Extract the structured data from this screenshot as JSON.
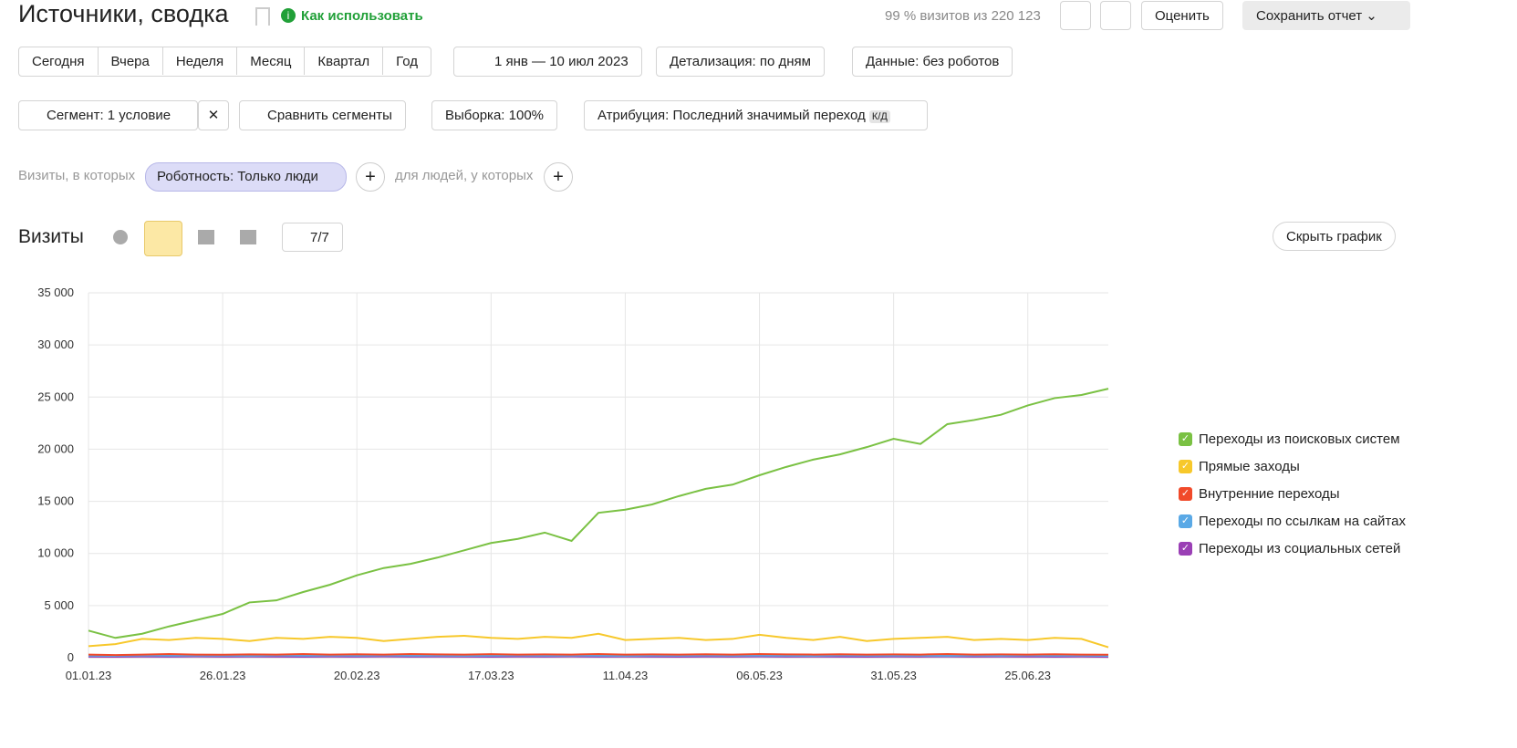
{
  "header": {
    "title": "Источники, сводка",
    "help": "Как использовать",
    "sampling": "99 % визитов из 220 123",
    "rate": "Оценить",
    "save": "Сохранить отчет"
  },
  "periods": [
    "Сегодня",
    "Вчера",
    "Неделя",
    "Месяц",
    "Квартал",
    "Год"
  ],
  "date_range": "1 янв — 10 июл 2023",
  "detail": "Детализация: по дням",
  "robots": "Данные: без роботов",
  "segment": "Сегмент: 1 условие",
  "compare": "Сравнить сегменты",
  "sample": "Выборка: 100%",
  "attribution": "Атрибуция: Последний значимый переход",
  "attribution_badge": "К/Д",
  "filter": {
    "prefix": "Визиты, в которых",
    "chip": "Роботность: Только люди",
    "people": "для людей, у которых"
  },
  "chart_header": {
    "title": "Визиты",
    "notes": "7/7",
    "hide": "Скрыть график"
  },
  "chart_data": {
    "type": "line",
    "x": [
      "01.01.23",
      "06.01.23",
      "11.01.23",
      "16.01.23",
      "21.01.23",
      "26.01.23",
      "31.01.23",
      "05.02.23",
      "10.02.23",
      "15.02.23",
      "20.02.23",
      "25.02.23",
      "02.03.23",
      "07.03.23",
      "12.03.23",
      "17.03.23",
      "22.03.23",
      "27.03.23",
      "01.04.23",
      "06.04.23",
      "11.04.23",
      "16.04.23",
      "21.04.23",
      "26.04.23",
      "01.05.23",
      "06.05.23",
      "11.05.23",
      "16.05.23",
      "21.05.23",
      "26.05.23",
      "31.05.23",
      "05.06.23",
      "10.06.23",
      "15.06.23",
      "20.06.23",
      "25.06.23",
      "30.06.23",
      "05.07.23",
      "10.07.23"
    ],
    "xlim": [
      "01.01.23",
      "10.07.23"
    ],
    "xticks": [
      "01.01.23",
      "26.01.23",
      "20.02.23",
      "17.03.23",
      "11.04.23",
      "06.05.23",
      "31.05.23",
      "25.06.23"
    ],
    "ylim": [
      0,
      35000
    ],
    "yticks": [
      0,
      {
        "value": 5000,
        "label": "5 000"
      },
      {
        "value": 10000,
        "label": "10 000"
      },
      {
        "value": 15000,
        "label": "15 000"
      },
      {
        "value": 20000,
        "label": "20 000"
      },
      {
        "value": 25000,
        "label": "25 000"
      },
      {
        "value": 30000,
        "label": "30 000"
      },
      {
        "value": 35000,
        "label": "35 000"
      }
    ],
    "grid": true,
    "legend": "right",
    "series": [
      {
        "name": "Переходы из поисковых систем",
        "color": "#7ac143",
        "values": [
          2600,
          1900,
          2300,
          3000,
          3600,
          4200,
          5300,
          5500,
          6300,
          7000,
          7900,
          8600,
          9000,
          9600,
          10300,
          11000,
          11400,
          12000,
          11200,
          13900,
          14200,
          14700,
          15500,
          16200,
          16600,
          17500,
          18300,
          19000,
          19500,
          20200,
          21000,
          20500,
          22400,
          22800,
          23300,
          24200,
          24900,
          25200,
          25800
        ]
      },
      {
        "name": "Прямые заходы",
        "color": "#f7c82b",
        "values": [
          1100,
          1300,
          1800,
          1700,
          1900,
          1800,
          1600,
          1900,
          1800,
          2000,
          1900,
          1600,
          1800,
          2000,
          2100,
          1900,
          1800,
          2000,
          1900,
          2300,
          1700,
          1800,
          1900,
          1700,
          1800,
          2200,
          1900,
          1700,
          2000,
          1600,
          1800,
          1900,
          2000,
          1700,
          1800,
          1700,
          1900,
          1800,
          1000
        ]
      },
      {
        "name": "Внутренние переходы",
        "color": "#f14a2a",
        "values": [
          300,
          250,
          300,
          350,
          300,
          280,
          320,
          300,
          350,
          300,
          330,
          300,
          350,
          320,
          300,
          340,
          300,
          320,
          300,
          350,
          300,
          320,
          300,
          330,
          300,
          350,
          320,
          300,
          330,
          300,
          320,
          300,
          350,
          300,
          320,
          300,
          330,
          300,
          280
        ]
      },
      {
        "name": "Переходы по ссылкам на сайтах",
        "color": "#5aa9e6",
        "values": [
          200,
          180,
          220,
          200,
          210,
          200,
          190,
          220,
          200,
          210,
          200,
          220,
          200,
          210,
          190,
          200,
          220,
          200,
          210,
          200,
          190,
          210,
          200,
          220,
          200,
          210,
          200,
          190,
          220,
          200,
          210,
          200,
          190,
          210,
          200,
          220,
          200,
          210,
          180
        ]
      },
      {
        "name": "Переходы из социальных сетей",
        "color": "#9a3fb5",
        "values": [
          100,
          90,
          110,
          100,
          120,
          100,
          110,
          100,
          90,
          110,
          100,
          120,
          100,
          110,
          100,
          90,
          110,
          100,
          120,
          100,
          110,
          100,
          90,
          110,
          100,
          120,
          100,
          110,
          100,
          90,
          110,
          100,
          120,
          100,
          110,
          100,
          90,
          110,
          80
        ]
      }
    ]
  }
}
